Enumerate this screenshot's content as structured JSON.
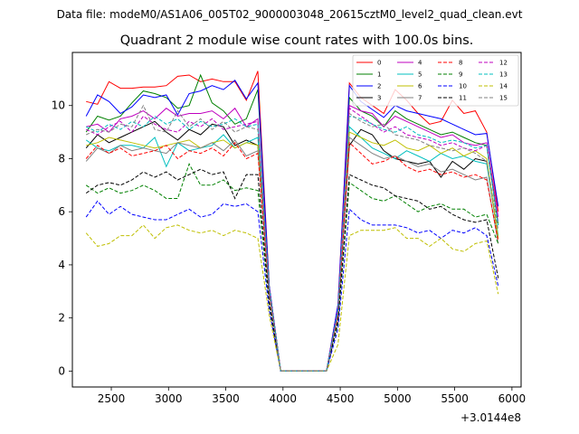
{
  "suptitle": "Data file: modeM0/AS1A06_005T02_9000003048_20615cztM0_level2_quad_clean.evt",
  "chart_data": {
    "type": "line",
    "title": "Quadrant 2 module wise count rates with 100.0s bins.",
    "xlabel": "",
    "ylabel": "",
    "x_offset_label": "+3.0144e8",
    "xlim": [
      2160,
      6080
    ],
    "ylim": [
      -0.6,
      12.0
    ],
    "xticks": [
      2500,
      3000,
      3500,
      4000,
      4500,
      5000,
      5500,
      6000
    ],
    "yticks": [
      0,
      2,
      4,
      6,
      8,
      10
    ],
    "legend_position": "top-right",
    "x": [
      2280,
      2380,
      2480,
      2580,
      2680,
      2780,
      2880,
      2980,
      3080,
      3180,
      3280,
      3380,
      3480,
      3580,
      3680,
      3780,
      3880,
      3980,
      4080,
      4180,
      4280,
      4380,
      4480,
      4580,
      4680,
      4780,
      4880,
      4980,
      5080,
      5180,
      5280,
      5380,
      5480,
      5580,
      5680,
      5780,
      5880
    ],
    "series": [
      {
        "name": "0",
        "color": "#ff0000",
        "style": "solid",
        "values": [
          10.15,
          10.05,
          10.9,
          10.65,
          10.65,
          10.7,
          10.7,
          10.75,
          11.1,
          11.15,
          10.9,
          11.0,
          10.9,
          10.9,
          10.2,
          11.3,
          3.2,
          0.0,
          0.0,
          0.0,
          0.0,
          0.0,
          2.5,
          10.85,
          10.3,
          10.0,
          9.7,
          10.6,
          10.2,
          9.7,
          9.3,
          9.4,
          10.2,
          9.7,
          9.8,
          9.0,
          6.0
        ]
      },
      {
        "name": "1",
        "color": "#008000",
        "style": "solid",
        "values": [
          9.0,
          9.6,
          9.45,
          9.6,
          10.1,
          10.55,
          10.45,
          10.3,
          9.9,
          10.0,
          11.15,
          10.1,
          9.8,
          9.3,
          9.5,
          10.6,
          3.2,
          0.0,
          0.0,
          0.0,
          0.0,
          0.0,
          2.3,
          10.3,
          9.8,
          9.6,
          9.2,
          9.8,
          9.5,
          9.3,
          9.1,
          8.9,
          9.0,
          8.8,
          8.6,
          8.5,
          5.5
        ]
      },
      {
        "name": "2",
        "color": "#0000ff",
        "style": "solid",
        "values": [
          9.6,
          10.4,
          10.15,
          9.7,
          9.95,
          10.4,
          10.3,
          10.4,
          9.65,
          10.45,
          10.55,
          10.75,
          10.6,
          10.95,
          10.25,
          10.85,
          3.2,
          0.0,
          0.0,
          0.0,
          0.0,
          0.0,
          2.5,
          10.75,
          10.15,
          9.85,
          9.55,
          10.0,
          9.8,
          9.7,
          9.6,
          9.5,
          9.3,
          9.1,
          8.9,
          8.95,
          6.2
        ]
      },
      {
        "name": "3",
        "color": "#000000",
        "style": "solid",
        "values": [
          8.4,
          8.9,
          8.6,
          8.8,
          9.0,
          9.2,
          9.4,
          9.0,
          8.7,
          9.1,
          8.9,
          9.3,
          9.2,
          8.5,
          8.7,
          8.5,
          3.0,
          0.0,
          0.0,
          0.0,
          0.0,
          0.0,
          2.2,
          8.5,
          9.1,
          8.9,
          8.3,
          8.0,
          7.9,
          7.8,
          7.9,
          7.3,
          7.9,
          7.6,
          8.0,
          7.9,
          5.0
        ]
      },
      {
        "name": "4",
        "color": "#bf00bf",
        "style": "solid",
        "values": [
          9.2,
          9.3,
          9.0,
          9.5,
          9.6,
          9.8,
          9.5,
          9.9,
          9.6,
          9.7,
          9.7,
          9.8,
          9.5,
          9.9,
          9.2,
          9.5,
          3.1,
          0.0,
          0.0,
          0.0,
          0.0,
          0.0,
          2.3,
          10.0,
          9.8,
          9.7,
          9.2,
          9.6,
          9.4,
          9.2,
          9.0,
          8.8,
          8.9,
          8.6,
          8.5,
          8.6,
          5.8
        ]
      },
      {
        "name": "5",
        "color": "#00bfbf",
        "style": "solid",
        "values": [
          8.7,
          8.4,
          8.3,
          8.5,
          8.5,
          8.4,
          8.8,
          7.7,
          8.6,
          8.3,
          8.4,
          8.5,
          8.9,
          8.4,
          8.6,
          8.8,
          3.0,
          0.0,
          0.0,
          0.0,
          0.0,
          0.0,
          2.2,
          9.2,
          8.8,
          8.4,
          8.2,
          8.0,
          8.3,
          8.1,
          7.9,
          8.2,
          8.0,
          8.1,
          7.9,
          7.8,
          5.1
        ]
      },
      {
        "name": "6",
        "color": "#bfbf00",
        "style": "solid",
        "values": [
          8.5,
          8.6,
          8.8,
          8.7,
          8.6,
          8.5,
          8.4,
          8.5,
          8.6,
          8.7,
          8.4,
          8.6,
          8.7,
          8.4,
          8.6,
          8.5,
          3.0,
          0.0,
          0.0,
          0.0,
          0.0,
          0.0,
          2.2,
          9.0,
          8.8,
          8.6,
          8.5,
          8.7,
          8.4,
          8.3,
          8.5,
          8.2,
          8.4,
          8.1,
          8.3,
          8.0,
          5.0
        ]
      },
      {
        "name": "7",
        "color": "#808080",
        "style": "solid",
        "values": [
          7.9,
          8.4,
          8.2,
          8.5,
          8.3,
          8.4,
          8.3,
          8.2,
          8.6,
          8.5,
          8.4,
          8.6,
          8.3,
          8.7,
          8.1,
          8.3,
          2.9,
          0.0,
          0.0,
          0.0,
          0.0,
          0.0,
          2.1,
          8.8,
          8.5,
          8.2,
          8.0,
          8.1,
          7.9,
          7.7,
          7.8,
          7.5,
          7.6,
          7.4,
          7.2,
          7.3,
          4.8
        ]
      },
      {
        "name": "8",
        "color": "#ff0000",
        "style": "dashed",
        "values": [
          8.0,
          8.5,
          8.2,
          8.4,
          8.1,
          8.2,
          8.3,
          8.5,
          8.0,
          8.3,
          8.2,
          8.4,
          8.1,
          8.6,
          8.0,
          8.2,
          2.9,
          0.0,
          0.0,
          0.0,
          0.0,
          0.0,
          2.1,
          8.6,
          8.2,
          7.8,
          7.9,
          8.1,
          7.7,
          7.5,
          7.6,
          7.4,
          7.5,
          7.3,
          7.4,
          7.2,
          4.9
        ]
      },
      {
        "name": "9",
        "color": "#008000",
        "style": "dashed",
        "values": [
          7.0,
          6.7,
          6.9,
          6.7,
          6.8,
          7.0,
          6.8,
          6.5,
          6.5,
          7.8,
          7.0,
          7.0,
          7.2,
          6.8,
          6.9,
          6.8,
          2.5,
          0.0,
          0.0,
          0.0,
          0.0,
          0.0,
          1.8,
          7.1,
          6.8,
          6.5,
          6.4,
          6.6,
          6.3,
          6.0,
          6.2,
          6.3,
          6.1,
          6.1,
          5.8,
          5.9,
          4.8
        ]
      },
      {
        "name": "10",
        "color": "#0000ff",
        "style": "dashed",
        "values": [
          5.8,
          6.4,
          5.9,
          6.2,
          5.9,
          5.8,
          5.7,
          5.7,
          5.9,
          6.1,
          5.8,
          5.9,
          6.3,
          6.2,
          6.3,
          6.0,
          2.3,
          0.0,
          0.0,
          0.0,
          0.0,
          0.0,
          1.6,
          6.1,
          5.7,
          5.5,
          5.5,
          5.5,
          5.4,
          5.2,
          5.3,
          5.0,
          5.3,
          5.2,
          5.4,
          5.1,
          3.2
        ]
      },
      {
        "name": "11",
        "color": "#000000",
        "style": "dashed",
        "values": [
          6.7,
          7.0,
          7.1,
          7.0,
          7.2,
          7.5,
          7.3,
          7.5,
          7.2,
          7.4,
          7.6,
          7.4,
          7.5,
          6.5,
          7.4,
          7.4,
          2.6,
          0.0,
          0.0,
          0.0,
          0.0,
          0.0,
          1.9,
          7.4,
          7.2,
          7.0,
          6.9,
          6.6,
          6.5,
          6.4,
          6.1,
          6.2,
          5.9,
          5.7,
          5.6,
          5.7,
          3.5
        ]
      },
      {
        "name": "12",
        "color": "#bf00bf",
        "style": "dashed",
        "values": [
          9.1,
          8.9,
          9.2,
          9.4,
          9.0,
          9.6,
          9.3,
          9.1,
          9.0,
          9.4,
          9.2,
          9.5,
          9.1,
          9.2,
          9.3,
          9.4,
          3.1,
          0.0,
          0.0,
          0.0,
          0.0,
          0.0,
          2.3,
          9.9,
          9.6,
          9.3,
          9.0,
          9.2,
          8.9,
          8.8,
          8.7,
          8.5,
          8.6,
          8.4,
          8.3,
          8.5,
          5.6
        ]
      },
      {
        "name": "13",
        "color": "#00bfbf",
        "style": "dashed",
        "values": [
          9.2,
          9.0,
          9.3,
          9.1,
          9.4,
          9.2,
          9.6,
          9.3,
          9.5,
          9.1,
          9.4,
          9.2,
          9.3,
          9.5,
          9.2,
          9.3,
          3.1,
          0.0,
          0.0,
          0.0,
          0.0,
          0.0,
          2.3,
          9.6,
          9.5,
          9.3,
          9.1,
          9.0,
          9.2,
          8.9,
          8.8,
          8.6,
          8.7,
          8.6,
          8.4,
          8.5,
          5.5
        ]
      },
      {
        "name": "14",
        "color": "#bfbf00",
        "style": "dashed",
        "values": [
          5.2,
          4.7,
          4.8,
          5.1,
          5.1,
          5.5,
          5.0,
          5.4,
          5.5,
          5.3,
          5.2,
          5.3,
          5.1,
          5.3,
          5.2,
          5.0,
          2.1,
          0.0,
          0.0,
          0.0,
          0.0,
          0.0,
          1.0,
          5.1,
          5.3,
          5.3,
          5.3,
          5.4,
          5.0,
          5.0,
          4.7,
          5.0,
          4.6,
          4.5,
          4.8,
          4.9,
          2.9
        ]
      },
      {
        "name": "15",
        "color": "#808080",
        "style": "dashed",
        "values": [
          8.9,
          9.1,
          9.0,
          9.3,
          9.2,
          10.0,
          9.1,
          9.0,
          9.8,
          9.2,
          9.5,
          9.1,
          9.4,
          9.0,
          9.2,
          9.1,
          3.0,
          0.0,
          0.0,
          0.0,
          0.0,
          0.0,
          2.2,
          9.7,
          9.4,
          9.2,
          9.3,
          8.9,
          8.8,
          8.7,
          8.5,
          8.4,
          8.3,
          8.4,
          8.2,
          7.9,
          5.3
        ]
      }
    ]
  }
}
